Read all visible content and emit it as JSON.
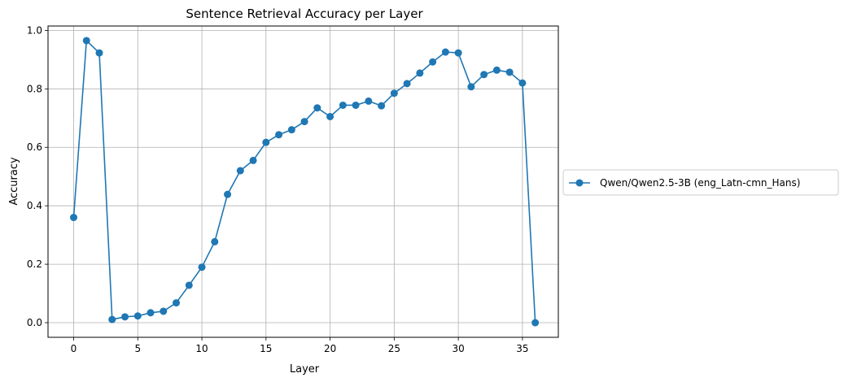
{
  "chart_data": {
    "type": "line",
    "title": "Sentence Retrieval Accuracy per Layer",
    "xlabel": "Layer",
    "ylabel": "Accuracy",
    "xlim": [
      -2.0,
      37.8
    ],
    "ylim": [
      -0.05,
      1.015
    ],
    "xticks": [
      0,
      5,
      10,
      15,
      20,
      25,
      30,
      35
    ],
    "yticks": [
      0.0,
      0.2,
      0.4,
      0.6,
      0.8,
      1.0
    ],
    "xtick_labels": [
      "0",
      "5",
      "10",
      "15",
      "20",
      "25",
      "30",
      "35"
    ],
    "ytick_labels": [
      "0.0",
      "0.2",
      "0.4",
      "0.6",
      "0.8",
      "1.0"
    ],
    "grid": true,
    "legend_position": "outside-right",
    "series": [
      {
        "name": "Qwen/Qwen2.5-3B (eng_Latn-cmn_Hans)",
        "color": "#1f77b4",
        "marker": "circle",
        "x": [
          0,
          1,
          2,
          3,
          4,
          5,
          6,
          7,
          8,
          9,
          10,
          11,
          12,
          13,
          14,
          15,
          16,
          17,
          18,
          19,
          20,
          21,
          22,
          23,
          24,
          25,
          26,
          27,
          28,
          29,
          30,
          31,
          32,
          33,
          34,
          35,
          36
        ],
        "values": [
          0.36,
          0.965,
          0.923,
          0.011,
          0.02,
          0.023,
          0.034,
          0.039,
          0.068,
          0.128,
          0.19,
          0.277,
          0.439,
          0.52,
          0.555,
          0.617,
          0.643,
          0.66,
          0.688,
          0.735,
          0.705,
          0.744,
          0.744,
          0.758,
          0.742,
          0.785,
          0.818,
          0.854,
          0.892,
          0.926,
          0.923,
          0.807,
          0.849,
          0.864,
          0.857,
          0.82,
          0.0
        ]
      }
    ]
  }
}
